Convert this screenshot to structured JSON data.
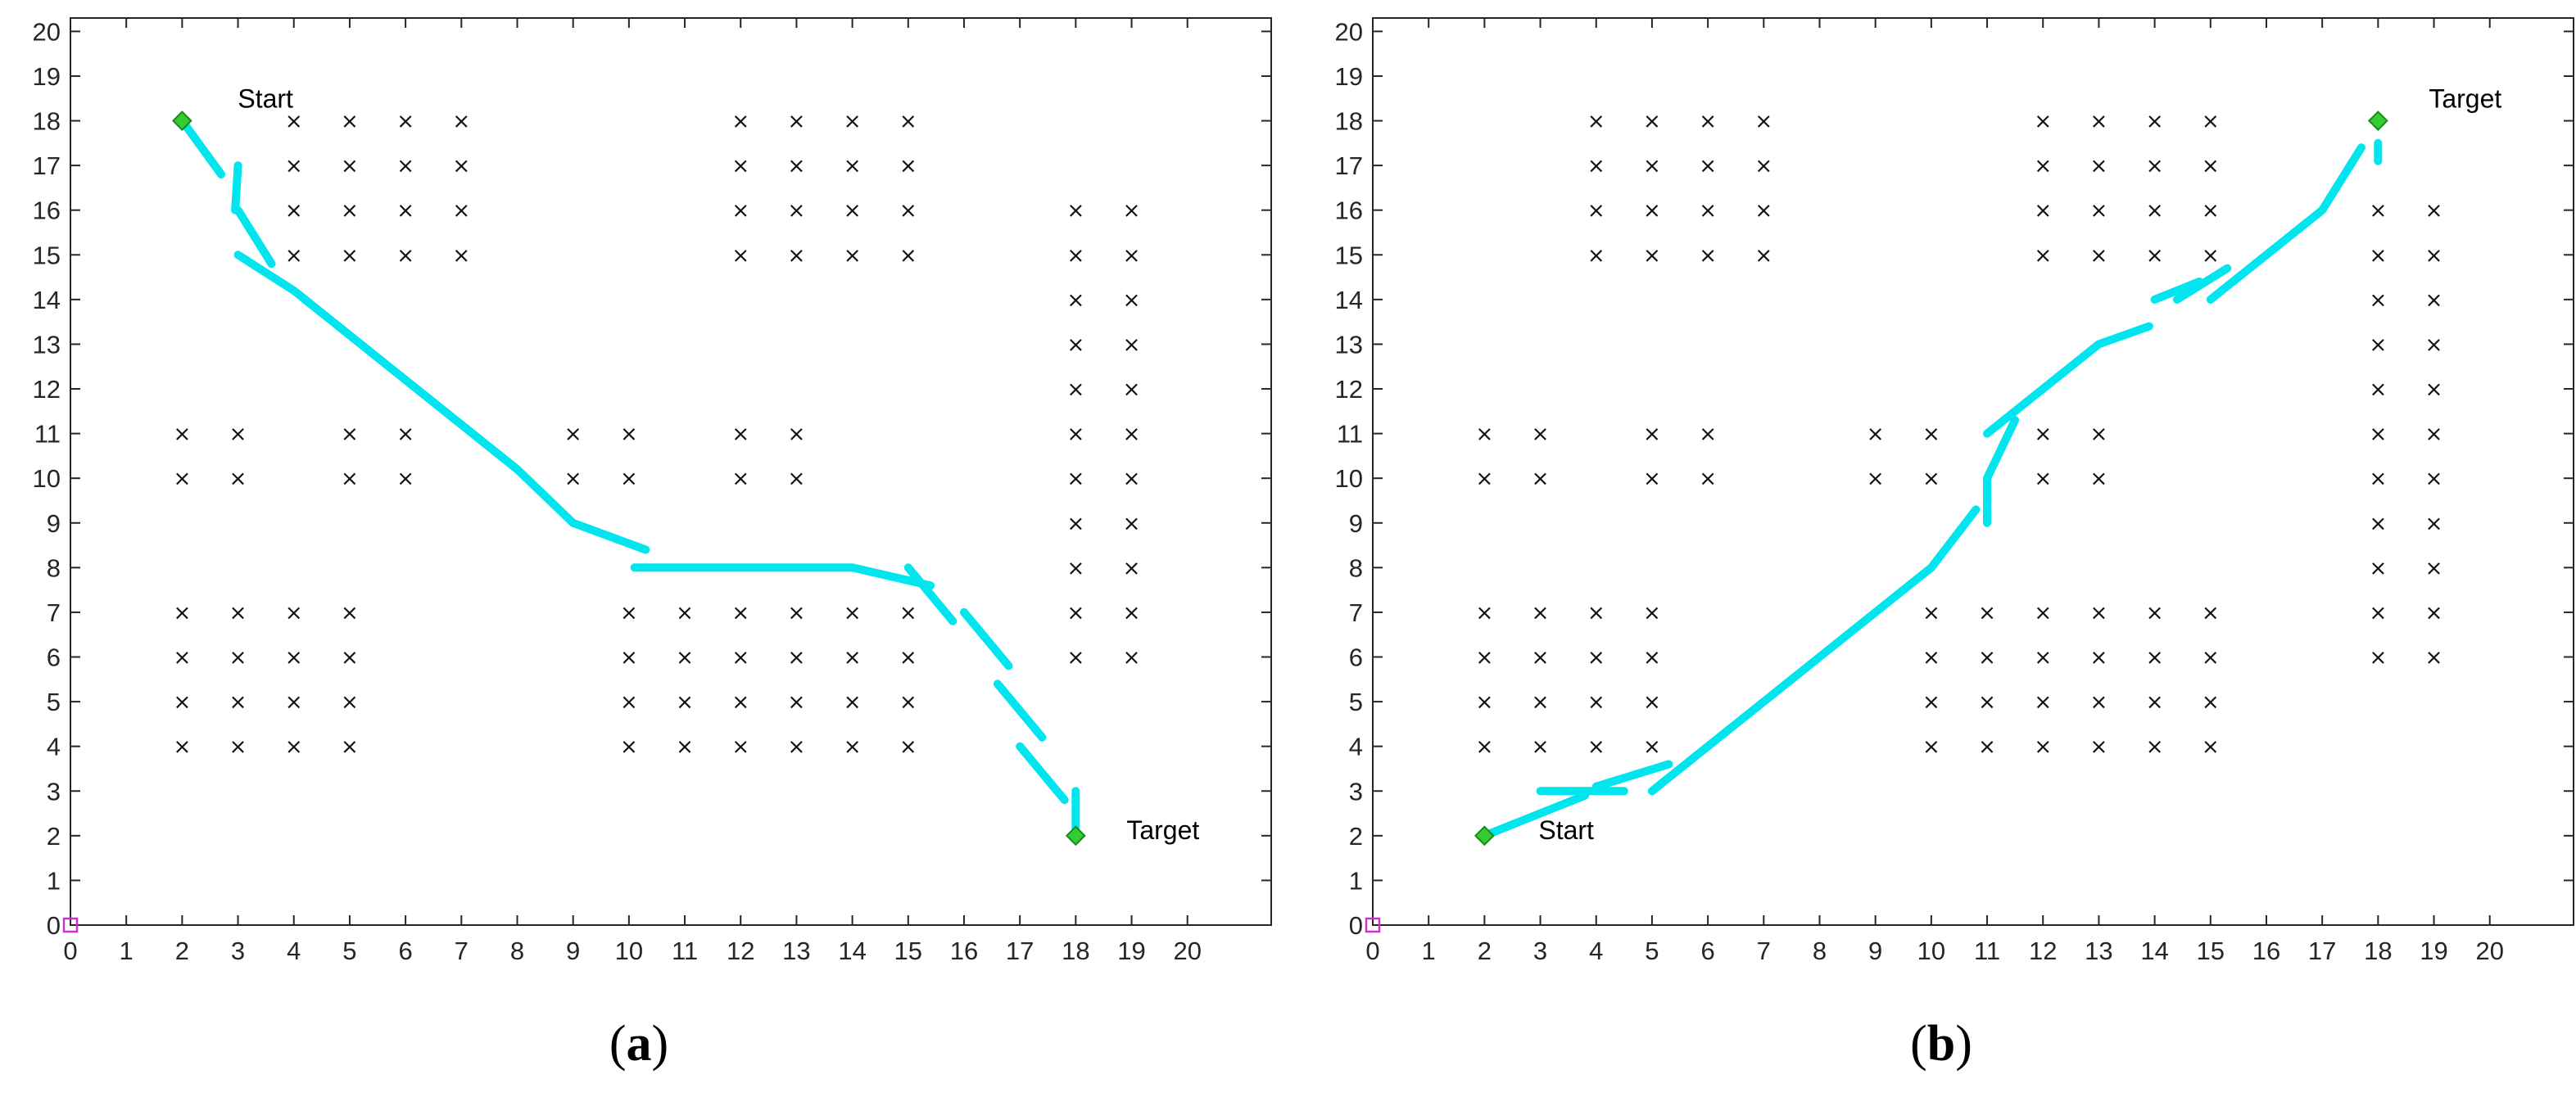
{
  "chart_data": [
    {
      "panel": "a",
      "caption_letter": "a",
      "type": "scatter",
      "xlim": [
        0,
        20
      ],
      "ylim": [
        0,
        20
      ],
      "x_ticks": [
        0,
        1,
        2,
        3,
        4,
        5,
        6,
        7,
        8,
        9,
        10,
        11,
        12,
        13,
        14,
        15,
        16,
        17,
        18,
        19,
        20
      ],
      "y_ticks": [
        0,
        1,
        2,
        3,
        4,
        5,
        6,
        7,
        8,
        9,
        10,
        11,
        12,
        13,
        14,
        15,
        16,
        17,
        18,
        19,
        20
      ],
      "grid": false,
      "origin_marker": {
        "x": 0,
        "y": 0,
        "color": "#cc33cc"
      },
      "start": {
        "label": "Start",
        "x": 2,
        "y": 18
      },
      "target": {
        "label": "Target",
        "x": 18,
        "y": 2
      },
      "endpoint_color": "#33cc33",
      "path_color": "#00e5ee",
      "path_segments": [
        [
          [
            2,
            18
          ],
          [
            2.7,
            16.8
          ]
        ],
        [
          [
            3,
            17
          ],
          [
            2.95,
            16
          ]
        ],
        [
          [
            3,
            16
          ],
          [
            3.6,
            14.8
          ]
        ],
        [
          [
            3,
            15
          ],
          [
            4,
            14.2
          ],
          [
            5,
            13.2
          ],
          [
            6,
            12.2
          ],
          [
            7,
            11.2
          ],
          [
            8,
            10.2
          ],
          [
            9,
            9
          ],
          [
            10.3,
            8.4
          ]
        ],
        [
          [
            10.1,
            8
          ],
          [
            14,
            8
          ],
          [
            15.4,
            7.6
          ]
        ],
        [
          [
            15,
            8
          ],
          [
            15.8,
            6.8
          ]
        ],
        [
          [
            16,
            7
          ],
          [
            16.8,
            5.8
          ]
        ],
        [
          [
            16.6,
            5.4
          ],
          [
            17.4,
            4.2
          ]
        ],
        [
          [
            17,
            4
          ],
          [
            17.8,
            2.8
          ]
        ],
        [
          [
            18,
            3
          ],
          [
            18,
            2
          ]
        ]
      ],
      "obstacles": [
        [
          4,
          18
        ],
        [
          5,
          18
        ],
        [
          6,
          18
        ],
        [
          7,
          18
        ],
        [
          4,
          17
        ],
        [
          5,
          17
        ],
        [
          6,
          17
        ],
        [
          7,
          17
        ],
        [
          4,
          16
        ],
        [
          5,
          16
        ],
        [
          6,
          16
        ],
        [
          7,
          16
        ],
        [
          4,
          15
        ],
        [
          5,
          15
        ],
        [
          6,
          15
        ],
        [
          7,
          15
        ],
        [
          12,
          18
        ],
        [
          13,
          18
        ],
        [
          14,
          18
        ],
        [
          15,
          18
        ],
        [
          12,
          17
        ],
        [
          13,
          17
        ],
        [
          14,
          17
        ],
        [
          15,
          17
        ],
        [
          12,
          16
        ],
        [
          13,
          16
        ],
        [
          14,
          16
        ],
        [
          15,
          16
        ],
        [
          12,
          15
        ],
        [
          13,
          15
        ],
        [
          14,
          15
        ],
        [
          15,
          15
        ],
        [
          18,
          16
        ],
        [
          19,
          16
        ],
        [
          18,
          15
        ],
        [
          19,
          15
        ],
        [
          18,
          14
        ],
        [
          19,
          14
        ],
        [
          18,
          13
        ],
        [
          19,
          13
        ],
        [
          18,
          12
        ],
        [
          19,
          12
        ],
        [
          18,
          11
        ],
        [
          19,
          11
        ],
        [
          18,
          10
        ],
        [
          19,
          10
        ],
        [
          18,
          9
        ],
        [
          19,
          9
        ],
        [
          18,
          8
        ],
        [
          19,
          8
        ],
        [
          18,
          7
        ],
        [
          19,
          7
        ],
        [
          18,
          6
        ],
        [
          19,
          6
        ],
        [
          2,
          11
        ],
        [
          3,
          11
        ],
        [
          2,
          10
        ],
        [
          3,
          10
        ],
        [
          5,
          11
        ],
        [
          6,
          11
        ],
        [
          5,
          10
        ],
        [
          6,
          10
        ],
        [
          9,
          11
        ],
        [
          10,
          11
        ],
        [
          9,
          10
        ],
        [
          10,
          10
        ],
        [
          12,
          11
        ],
        [
          13,
          11
        ],
        [
          12,
          10
        ],
        [
          13,
          10
        ],
        [
          2,
          7
        ],
        [
          3,
          7
        ],
        [
          4,
          7
        ],
        [
          5,
          7
        ],
        [
          2,
          6
        ],
        [
          3,
          6
        ],
        [
          4,
          6
        ],
        [
          5,
          6
        ],
        [
          2,
          5
        ],
        [
          3,
          5
        ],
        [
          4,
          5
        ],
        [
          5,
          5
        ],
        [
          2,
          4
        ],
        [
          3,
          4
        ],
        [
          4,
          4
        ],
        [
          5,
          4
        ],
        [
          10,
          7
        ],
        [
          11,
          7
        ],
        [
          12,
          7
        ],
        [
          13,
          7
        ],
        [
          14,
          7
        ],
        [
          15,
          7
        ],
        [
          10,
          6
        ],
        [
          11,
          6
        ],
        [
          12,
          6
        ],
        [
          13,
          6
        ],
        [
          14,
          6
        ],
        [
          15,
          6
        ],
        [
          10,
          5
        ],
        [
          11,
          5
        ],
        [
          12,
          5
        ],
        [
          13,
          5
        ],
        [
          14,
          5
        ],
        [
          15,
          5
        ],
        [
          10,
          4
        ],
        [
          11,
          4
        ],
        [
          12,
          4
        ],
        [
          13,
          4
        ],
        [
          14,
          4
        ],
        [
          15,
          4
        ]
      ]
    },
    {
      "panel": "b",
      "caption_letter": "b",
      "type": "scatter",
      "xlim": [
        0,
        20
      ],
      "ylim": [
        0,
        20
      ],
      "x_ticks": [
        0,
        1,
        2,
        3,
        4,
        5,
        6,
        7,
        8,
        9,
        10,
        11,
        12,
        13,
        14,
        15,
        16,
        17,
        18,
        19,
        20
      ],
      "y_ticks": [
        0,
        1,
        2,
        3,
        4,
        5,
        6,
        7,
        8,
        9,
        10,
        11,
        12,
        13,
        14,
        15,
        16,
        17,
        18,
        19,
        20
      ],
      "grid": false,
      "origin_marker": {
        "x": 0,
        "y": 0,
        "color": "#cc33cc"
      },
      "start": {
        "label": "Start",
        "x": 2,
        "y": 2
      },
      "target": {
        "label": "Target",
        "x": 18,
        "y": 18
      },
      "endpoint_color": "#33cc33",
      "path_color": "#00e5ee",
      "path_segments": [
        [
          [
            2,
            2
          ],
          [
            3,
            2.5
          ],
          [
            3.8,
            2.9
          ]
        ],
        [
          [
            3,
            3
          ],
          [
            4.5,
            3
          ]
        ],
        [
          [
            4,
            3.1
          ],
          [
            5.3,
            3.6
          ]
        ],
        [
          [
            5,
            3
          ],
          [
            6,
            4
          ],
          [
            7,
            5
          ],
          [
            8,
            6
          ],
          [
            9,
            7
          ],
          [
            10,
            8
          ],
          [
            10.8,
            9.3
          ]
        ],
        [
          [
            11,
            9
          ],
          [
            11,
            10
          ]
        ],
        [
          [
            11,
            10
          ],
          [
            11.5,
            11.3
          ]
        ],
        [
          [
            11,
            11
          ],
          [
            12,
            12
          ],
          [
            13,
            13
          ],
          [
            13.9,
            13.4
          ]
        ],
        [
          [
            14,
            14
          ],
          [
            14.8,
            14.4
          ]
        ],
        [
          [
            14.4,
            14
          ],
          [
            15.3,
            14.7
          ]
        ],
        [
          [
            15,
            14
          ],
          [
            16,
            15
          ],
          [
            17,
            16
          ],
          [
            17.7,
            17.4
          ]
        ],
        [
          [
            18,
            17.1
          ],
          [
            18,
            17.5
          ]
        ]
      ],
      "obstacles": [
        [
          4,
          18
        ],
        [
          5,
          18
        ],
        [
          6,
          18
        ],
        [
          7,
          18
        ],
        [
          4,
          17
        ],
        [
          5,
          17
        ],
        [
          6,
          17
        ],
        [
          7,
          17
        ],
        [
          4,
          16
        ],
        [
          5,
          16
        ],
        [
          6,
          16
        ],
        [
          7,
          16
        ],
        [
          4,
          15
        ],
        [
          5,
          15
        ],
        [
          6,
          15
        ],
        [
          7,
          15
        ],
        [
          12,
          18
        ],
        [
          13,
          18
        ],
        [
          14,
          18
        ],
        [
          15,
          18
        ],
        [
          12,
          17
        ],
        [
          13,
          17
        ],
        [
          14,
          17
        ],
        [
          15,
          17
        ],
        [
          12,
          16
        ],
        [
          13,
          16
        ],
        [
          14,
          16
        ],
        [
          15,
          16
        ],
        [
          12,
          15
        ],
        [
          13,
          15
        ],
        [
          14,
          15
        ],
        [
          15,
          15
        ],
        [
          18,
          16
        ],
        [
          19,
          16
        ],
        [
          18,
          15
        ],
        [
          19,
          15
        ],
        [
          18,
          14
        ],
        [
          19,
          14
        ],
        [
          18,
          13
        ],
        [
          19,
          13
        ],
        [
          18,
          12
        ],
        [
          19,
          12
        ],
        [
          18,
          11
        ],
        [
          19,
          11
        ],
        [
          18,
          10
        ],
        [
          19,
          10
        ],
        [
          18,
          9
        ],
        [
          19,
          9
        ],
        [
          18,
          8
        ],
        [
          19,
          8
        ],
        [
          18,
          7
        ],
        [
          19,
          7
        ],
        [
          18,
          6
        ],
        [
          19,
          6
        ],
        [
          2,
          11
        ],
        [
          3,
          11
        ],
        [
          2,
          10
        ],
        [
          3,
          10
        ],
        [
          5,
          11
        ],
        [
          6,
          11
        ],
        [
          5,
          10
        ],
        [
          6,
          10
        ],
        [
          9,
          11
        ],
        [
          10,
          11
        ],
        [
          9,
          10
        ],
        [
          10,
          10
        ],
        [
          12,
          11
        ],
        [
          13,
          11
        ],
        [
          12,
          10
        ],
        [
          13,
          10
        ],
        [
          2,
          7
        ],
        [
          3,
          7
        ],
        [
          4,
          7
        ],
        [
          5,
          7
        ],
        [
          2,
          6
        ],
        [
          3,
          6
        ],
        [
          4,
          6
        ],
        [
          5,
          6
        ],
        [
          2,
          5
        ],
        [
          3,
          5
        ],
        [
          4,
          5
        ],
        [
          5,
          5
        ],
        [
          2,
          4
        ],
        [
          3,
          4
        ],
        [
          4,
          4
        ],
        [
          5,
          4
        ],
        [
          10,
          7
        ],
        [
          11,
          7
        ],
        [
          12,
          7
        ],
        [
          13,
          7
        ],
        [
          14,
          7
        ],
        [
          15,
          7
        ],
        [
          10,
          6
        ],
        [
          11,
          6
        ],
        [
          12,
          6
        ],
        [
          13,
          6
        ],
        [
          14,
          6
        ],
        [
          15,
          6
        ],
        [
          10,
          5
        ],
        [
          11,
          5
        ],
        [
          12,
          5
        ],
        [
          13,
          5
        ],
        [
          14,
          5
        ],
        [
          15,
          5
        ],
        [
          10,
          4
        ],
        [
          11,
          4
        ],
        [
          12,
          4
        ],
        [
          13,
          4
        ],
        [
          14,
          4
        ],
        [
          15,
          4
        ]
      ]
    }
  ]
}
